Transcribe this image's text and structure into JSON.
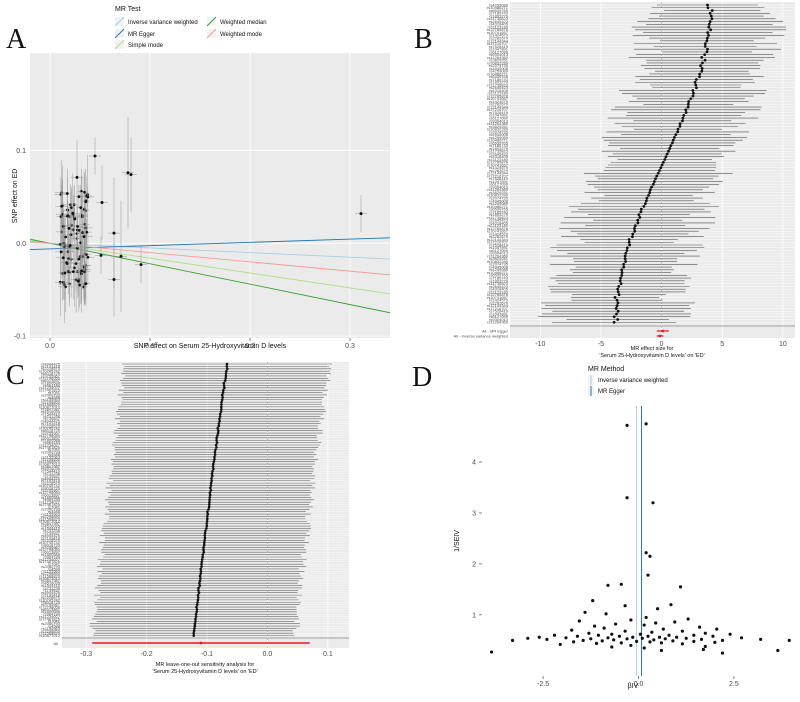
{
  "panels": {
    "a": "A",
    "b": "B",
    "c": "C",
    "d": "D"
  },
  "legend_a": {
    "title": "MR Test",
    "items": [
      "Inverse variance weighted",
      "MR Egger",
      "Simple mode",
      "Weighted median",
      "Weighted mode"
    ],
    "colors": [
      "#a6cee3",
      "#1f78b4",
      "#b2df8a",
      "#33a02c",
      "#fb9a99"
    ]
  },
  "legend_d": {
    "title": "MR Method",
    "items": [
      "Inverse variance weighted",
      "MR Egger"
    ],
    "colors": [
      "#a6cee3",
      "#1f78b4"
    ]
  },
  "chart_data": [
    {
      "id": "A",
      "type": "scatter",
      "xlabel": "SNP effect on Serum 25-Hydroxyvitamin D levels",
      "ylabel": "SNP effect on ED",
      "xlim": [
        -0.02,
        0.34
      ],
      "ylim": [
        -0.102,
        0.205
      ],
      "xticks": [
        0.0,
        0.1,
        0.2,
        0.3
      ],
      "xtick_labels": [
        "0.0",
        "0.1",
        "0.2",
        "0.3"
      ],
      "yticks": [
        -0.1,
        0.0,
        0.1
      ],
      "ytick_labels": [
        "-0.1",
        "0.0",
        "0.1"
      ],
      "outliers": [
        {
          "x": 0.311,
          "y": 0.032
        },
        {
          "x": 0.081,
          "y": 0.074
        },
        {
          "x": 0.078,
          "y": 0.076
        },
        {
          "x": 0.045,
          "y": 0.094
        },
        {
          "x": 0.052,
          "y": 0.044
        },
        {
          "x": 0.064,
          "y": 0.011
        },
        {
          "x": 0.091,
          "y": -0.023
        },
        {
          "x": 0.064,
          "y": -0.039
        },
        {
          "x": 0.071,
          "y": -0.014
        },
        {
          "x": 0.051,
          "y": -0.013
        },
        {
          "x": 0.027,
          "y": 0.071
        }
      ],
      "lines": [
        {
          "name": "Inverse variance weighted",
          "intercept": 0,
          "slope": -0.05
        },
        {
          "name": "MR Egger",
          "intercept": -0.006,
          "slope": 0.035
        },
        {
          "name": "Simple mode",
          "intercept": 0,
          "slope": -0.16
        },
        {
          "name": "Weighted median",
          "intercept": 0,
          "slope": -0.22
        },
        {
          "name": "Weighted mode",
          "intercept": 0,
          "slope": -0.1
        }
      ]
    },
    {
      "id": "B",
      "type": "forest",
      "xlabel": "MR effect size for\n'Serum 25-Hydroxyvitamin D levels' on 'ED'",
      "xlim": [
        -12.5,
        11
      ],
      "xticks": [
        -10,
        -5,
        0,
        5,
        10
      ],
      "xtick_labels": [
        "-10",
        "-5",
        "0",
        "5",
        "10"
      ],
      "n_snps": 116,
      "estimate_range": [
        -4,
        4.2
      ],
      "summary_labels": [
        "All - MR Egger",
        "All - Inverse variance weighted"
      ],
      "summary": [
        {
          "est": 0.1,
          "lo": -0.4,
          "hi": 0.6
        },
        {
          "est": -0.15,
          "lo": -0.4,
          "hi": 0.15
        }
      ],
      "snp_labels": [
        "rs4259089",
        "rs10486271",
        "rs6539765",
        "rs7185743",
        "rs1893279",
        "rs11735823",
        "rs2645423",
        "rs4318405",
        "rs11123180",
        "rs12785878",
        "rs10741657",
        "rs1424579",
        "rs2282679",
        "rs12144344",
        "rs17216707",
        "rs7528419",
        "rs1047891",
        "rs6127099",
        "rs9304013",
        "rs11264360",
        "rs3829251",
        "rs10832289",
        "rs2074735",
        "rs4945008"
      ]
    },
    {
      "id": "C",
      "type": "forest",
      "xlabel": "MR leave-one-out sensitivity analysis for\n'Serum 25-Hydroxyvitamin D levels' on 'ED'",
      "xlim": [
        -0.34,
        0.135
      ],
      "xticks": [
        -0.3,
        -0.2,
        -0.1,
        0.0,
        0.1
      ],
      "xtick_labels": [
        "-0.3",
        "-0.2",
        "-0.1",
        "0.0",
        "0.1"
      ],
      "n_snps": 115,
      "estimate_range": [
        -0.122,
        -0.066
      ],
      "ci_halfwidth": 0.168,
      "summary_label": "All",
      "summary": {
        "est": -0.11,
        "lo": -0.29,
        "hi": 0.07
      },
      "snp_labels": [
        "rs4944425",
        "rs7193418",
        "rs2228570",
        "rs10745742",
        "rs8018720",
        "rs3755967",
        "rs12798050",
        "rs6013897",
        "rs1800588",
        "rs964184",
        "rs11234027",
        "rs17467825",
        "rs7041",
        "rs2060793",
        "rs4588",
        "rs1155563",
        "rs2298850",
        "rs11568820",
        "rs10877012",
        "rs3847987",
        "rs4516035",
        "rs1544410",
        "rs731236",
        "rs739837"
      ]
    },
    {
      "id": "D",
      "type": "scatter",
      "xlabel": "βIV",
      "ylabel": "1/SEIV",
      "xlim": [
        -4.1,
        4.1
      ],
      "ylim": [
        -0.2,
        5.1
      ],
      "xticks": [
        -2.5,
        0.0,
        2.5
      ],
      "xtick_labels": [
        "-2.5",
        "0.0",
        "2.5"
      ],
      "yticks": [
        1,
        2,
        3,
        4
      ],
      "ytick_labels": [
        "1",
        "2",
        "3",
        "4"
      ],
      "ivw_estimate": -0.05,
      "egger_estimate": 0.08,
      "points": [
        {
          "x": -0.3,
          "y": 4.72
        },
        {
          "x": 0.2,
          "y": 4.75
        },
        {
          "x": -0.3,
          "y": 3.3
        },
        {
          "x": 0.38,
          "y": 3.2
        },
        {
          "x": 0.2,
          "y": 2.22
        },
        {
          "x": 0.3,
          "y": 2.15
        },
        {
          "x": 0.25,
          "y": 1.78
        },
        {
          "x": -0.8,
          "y": 1.58
        },
        {
          "x": -0.45,
          "y": 1.6
        },
        {
          "x": 1.1,
          "y": 1.55
        },
        {
          "x": -1.2,
          "y": 1.28
        },
        {
          "x": 0.85,
          "y": 1.2
        },
        {
          "x": -0.35,
          "y": 1.18
        },
        {
          "x": 0.5,
          "y": 1.12
        },
        {
          "x": -1.4,
          "y": 1.05
        },
        {
          "x": -0.85,
          "y": 1.02
        },
        {
          "x": 0.2,
          "y": 0.95
        },
        {
          "x": 1.3,
          "y": 0.92
        },
        {
          "x": -0.2,
          "y": 0.9
        },
        {
          "x": -1.55,
          "y": 0.88
        },
        {
          "x": 0.95,
          "y": 0.86
        },
        {
          "x": 0.45,
          "y": 0.84
        },
        {
          "x": -0.6,
          "y": 0.82
        },
        {
          "x": 0.15,
          "y": 0.8
        },
        {
          "x": -1.15,
          "y": 0.78
        },
        {
          "x": 1.6,
          "y": 0.76
        },
        {
          "x": -0.9,
          "y": 0.74
        },
        {
          "x": 0.65,
          "y": 0.72
        },
        {
          "x": 2.05,
          "y": 0.72
        },
        {
          "x": -1.75,
          "y": 0.7
        },
        {
          "x": -0.35,
          "y": 0.68
        },
        {
          "x": 1.15,
          "y": 0.68
        },
        {
          "x": 0.35,
          "y": 0.66
        },
        {
          "x": -1.3,
          "y": 0.64
        },
        {
          "x": 1.75,
          "y": 0.64
        },
        {
          "x": -0.7,
          "y": 0.62
        },
        {
          "x": 0.05,
          "y": 0.62
        },
        {
          "x": 2.4,
          "y": 0.62
        },
        {
          "x": -2.2,
          "y": 0.6
        },
        {
          "x": -1.05,
          "y": 0.6
        },
        {
          "x": 0.8,
          "y": 0.6
        },
        {
          "x": 1.45,
          "y": 0.6
        },
        {
          "x": -0.5,
          "y": 0.58
        },
        {
          "x": 0.25,
          "y": 0.58
        },
        {
          "x": -1.6,
          "y": 0.58
        },
        {
          "x": 1.95,
          "y": 0.58
        },
        {
          "x": -2.6,
          "y": 0.56
        },
        {
          "x": -0.15,
          "y": 0.56
        },
        {
          "x": 0.55,
          "y": 0.56
        },
        {
          "x": 1.0,
          "y": 0.56
        },
        {
          "x": -0.8,
          "y": 0.55
        },
        {
          "x": -1.9,
          "y": 0.55
        },
        {
          "x": 2.7,
          "y": 0.55
        },
        {
          "x": -2.9,
          "y": 0.54
        },
        {
          "x": 0.1,
          "y": 0.54
        },
        {
          "x": 1.25,
          "y": 0.54
        },
        {
          "x": -1.25,
          "y": 0.53
        },
        {
          "x": -0.3,
          "y": 0.53
        },
        {
          "x": 0.7,
          "y": 0.53
        },
        {
          "x": -2.4,
          "y": 0.52
        },
        {
          "x": 1.65,
          "y": 0.52
        },
        {
          "x": 3.2,
          "y": 0.52
        },
        {
          "x": -0.65,
          "y": 0.51
        },
        {
          "x": 0.4,
          "y": 0.51
        },
        {
          "x": -3.3,
          "y": 0.5
        },
        {
          "x": -1.45,
          "y": 0.5
        },
        {
          "x": 2.2,
          "y": 0.5
        },
        {
          "x": 3.95,
          "y": 0.5
        },
        {
          "x": -0.95,
          "y": 0.49
        },
        {
          "x": 0.9,
          "y": 0.49
        },
        {
          "x": -0.05,
          "y": 0.48
        },
        {
          "x": 1.45,
          "y": 0.48
        },
        {
          "x": -1.7,
          "y": 0.47
        },
        {
          "x": 0.3,
          "y": 0.47
        },
        {
          "x": 2.0,
          "y": 0.46
        },
        {
          "x": -0.45,
          "y": 0.45
        },
        {
          "x": 0.6,
          "y": 0.45
        },
        {
          "x": -1.1,
          "y": 0.44
        },
        {
          "x": 1.15,
          "y": 0.43
        },
        {
          "x": -2.05,
          "y": 0.42
        },
        {
          "x": -0.2,
          "y": 0.4
        },
        {
          "x": 1.75,
          "y": 0.38
        },
        {
          "x": -0.7,
          "y": 0.37
        },
        {
          "x": 0.15,
          "y": 0.35
        },
        {
          "x": 1.7,
          "y": 0.32
        },
        {
          "x": 0.6,
          "y": 0.3
        },
        {
          "x": 3.65,
          "y": 0.3
        },
        {
          "x": -3.85,
          "y": 0.27
        },
        {
          "x": 2.2,
          "y": 0.25
        }
      ]
    }
  ]
}
